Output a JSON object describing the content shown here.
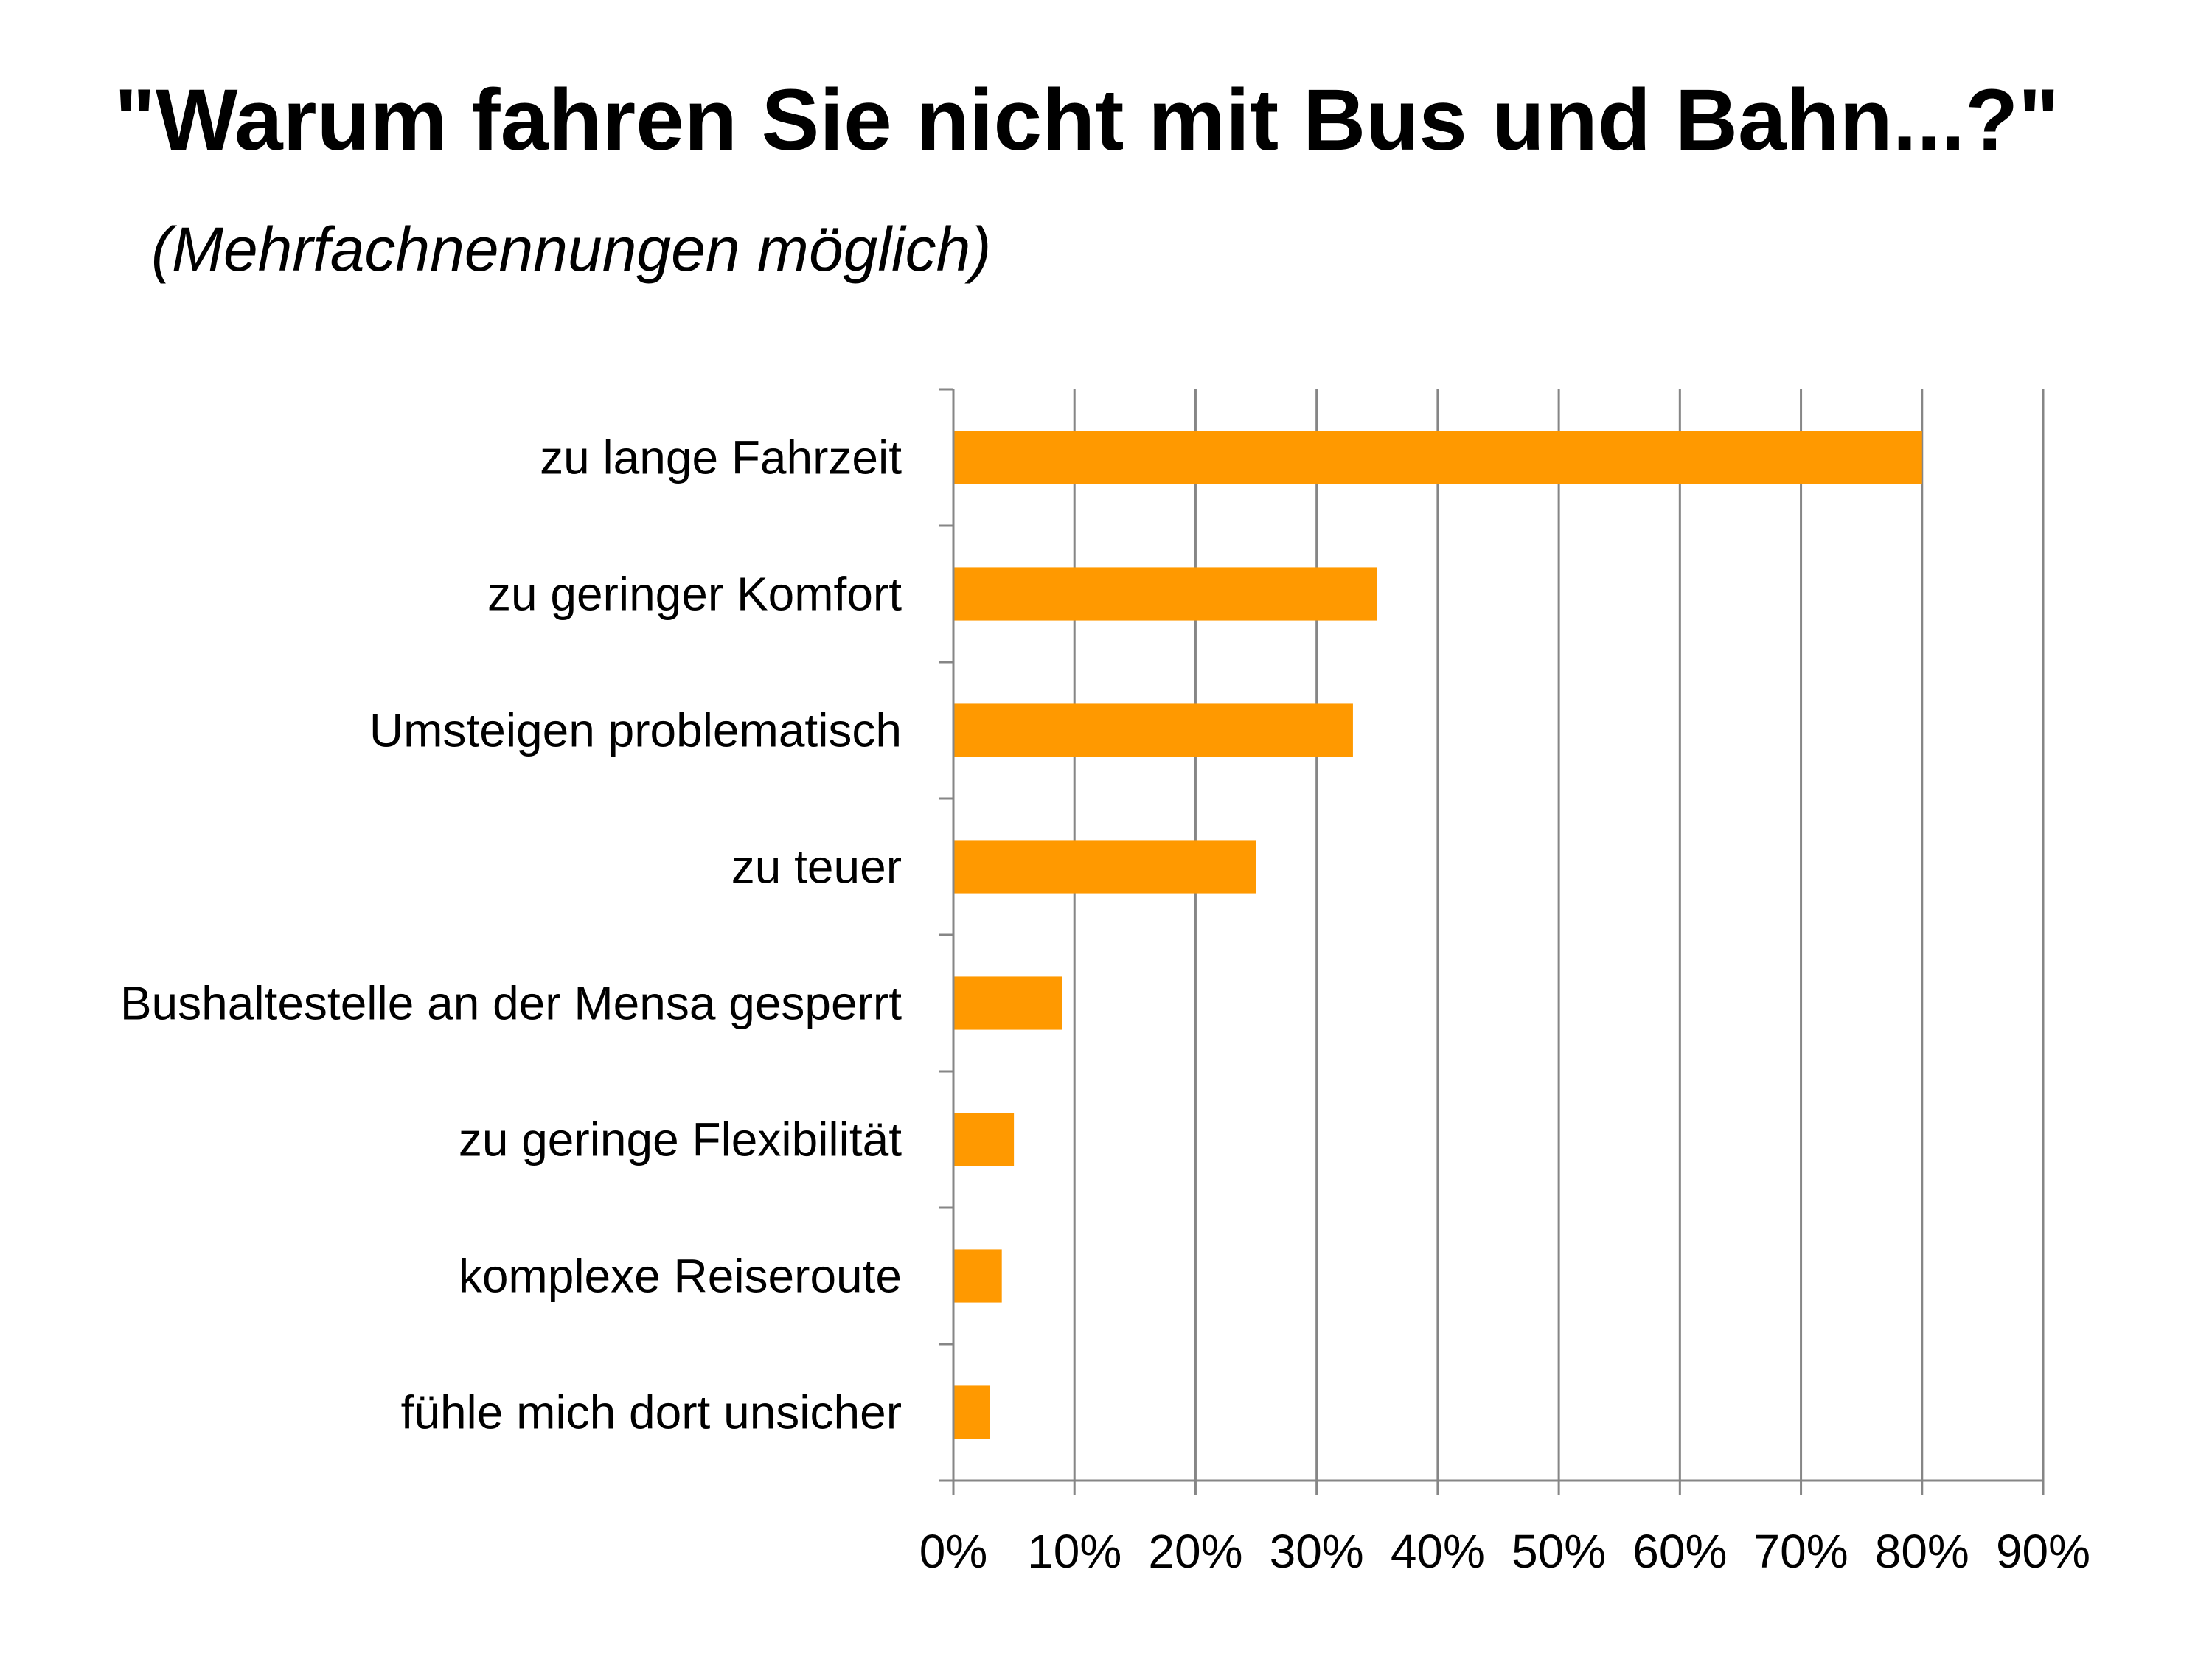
{
  "chart_data": {
    "type": "bar",
    "orientation": "horizontal",
    "title": "\"Warum fahren Sie nicht mit Bus und Bahn...?\"",
    "subtitle": "(Mehrfachnennungen möglich)",
    "categories": [
      "zu lange Fahrzeit",
      "zu geringer Komfort",
      "Umsteigen problematisch",
      "zu teuer",
      "Bushaltestelle an der Mensa gesperrt",
      "zu geringe Flexibilität",
      "komplexe Reiseroute",
      "fühle mich dort unsicher"
    ],
    "values": [
      0.8,
      0.35,
      0.33,
      0.25,
      0.09,
      0.05,
      0.04,
      0.03
    ],
    "xlim": [
      0,
      0.9
    ],
    "xticks": [
      "0%",
      "10%",
      "20%",
      "30%",
      "40%",
      "50%",
      "60%",
      "70%",
      "80%",
      "90%"
    ],
    "grid": true,
    "bar_color": "#FF9900",
    "grid_color": "#868686"
  }
}
